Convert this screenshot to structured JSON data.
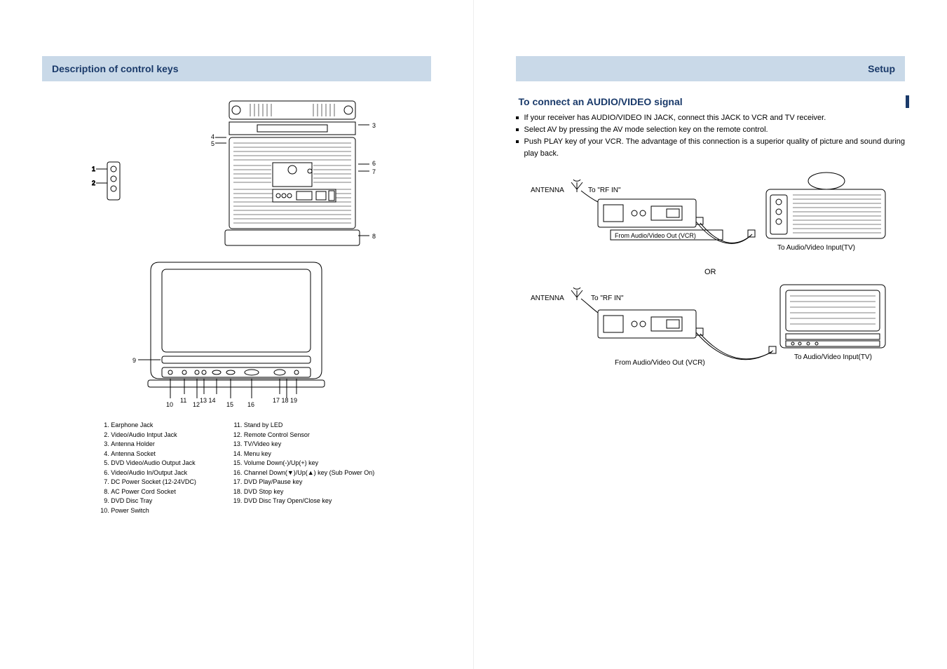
{
  "left": {
    "header": "Description of control keys",
    "parts_list_a": [
      "Earphone Jack",
      "Video/Audio Intput Jack",
      "Antenna Holder",
      "Antenna Socket",
      "DVD Video/Audio Output Jack",
      "Video/Audio In/Output Jack",
      "DC Power Socket (12-24VDC)",
      "AC Power Cord Socket",
      "DVD Disc Tray",
      "Power Switch"
    ],
    "parts_list_b": [
      "Stand by LED",
      "Remote Control Sensor",
      "TV/Video key",
      "Menu key",
      "Volume Down(-)/Up(+) key",
      "Channel Down(▼)/Up(▲) key  (Sub Power On)",
      "DVD Play/Pause key",
      "DVD Stop key",
      "DVD Disc Tray Open/Close key"
    ],
    "rear_numbers": [
      "1",
      "2",
      "3",
      "4",
      "5",
      "6",
      "7",
      "8"
    ],
    "front_numbers": [
      "9",
      "10",
      "11",
      "12",
      "13",
      "14",
      "15",
      "16",
      "17",
      "18",
      "19"
    ]
  },
  "right": {
    "header": "Setup",
    "section_title": "To connect an AUDIO/VIDEO signal",
    "bullets": [
      "If your receiver has AUDIO/VIDEO IN JACK, connect this JACK to VCR and TV receiver.",
      "Select AV by pressing the AV mode selection key on the remote control.",
      "Push PLAY key of your VCR. The advantage of this connection is a superior quality of picture and sound during play back."
    ],
    "labels": {
      "antenna": "ANTENNA",
      "to_rf_in": "To \"RF IN\"",
      "from_av_out": "From Audio/Video Out (VCR)",
      "to_av_in": "To Audio/Video Input(TV)",
      "or": "OR"
    }
  },
  "colors": {
    "header_bg": "#c9d9e8",
    "header_fg": "#1a3a6a",
    "stroke": "#000000"
  }
}
